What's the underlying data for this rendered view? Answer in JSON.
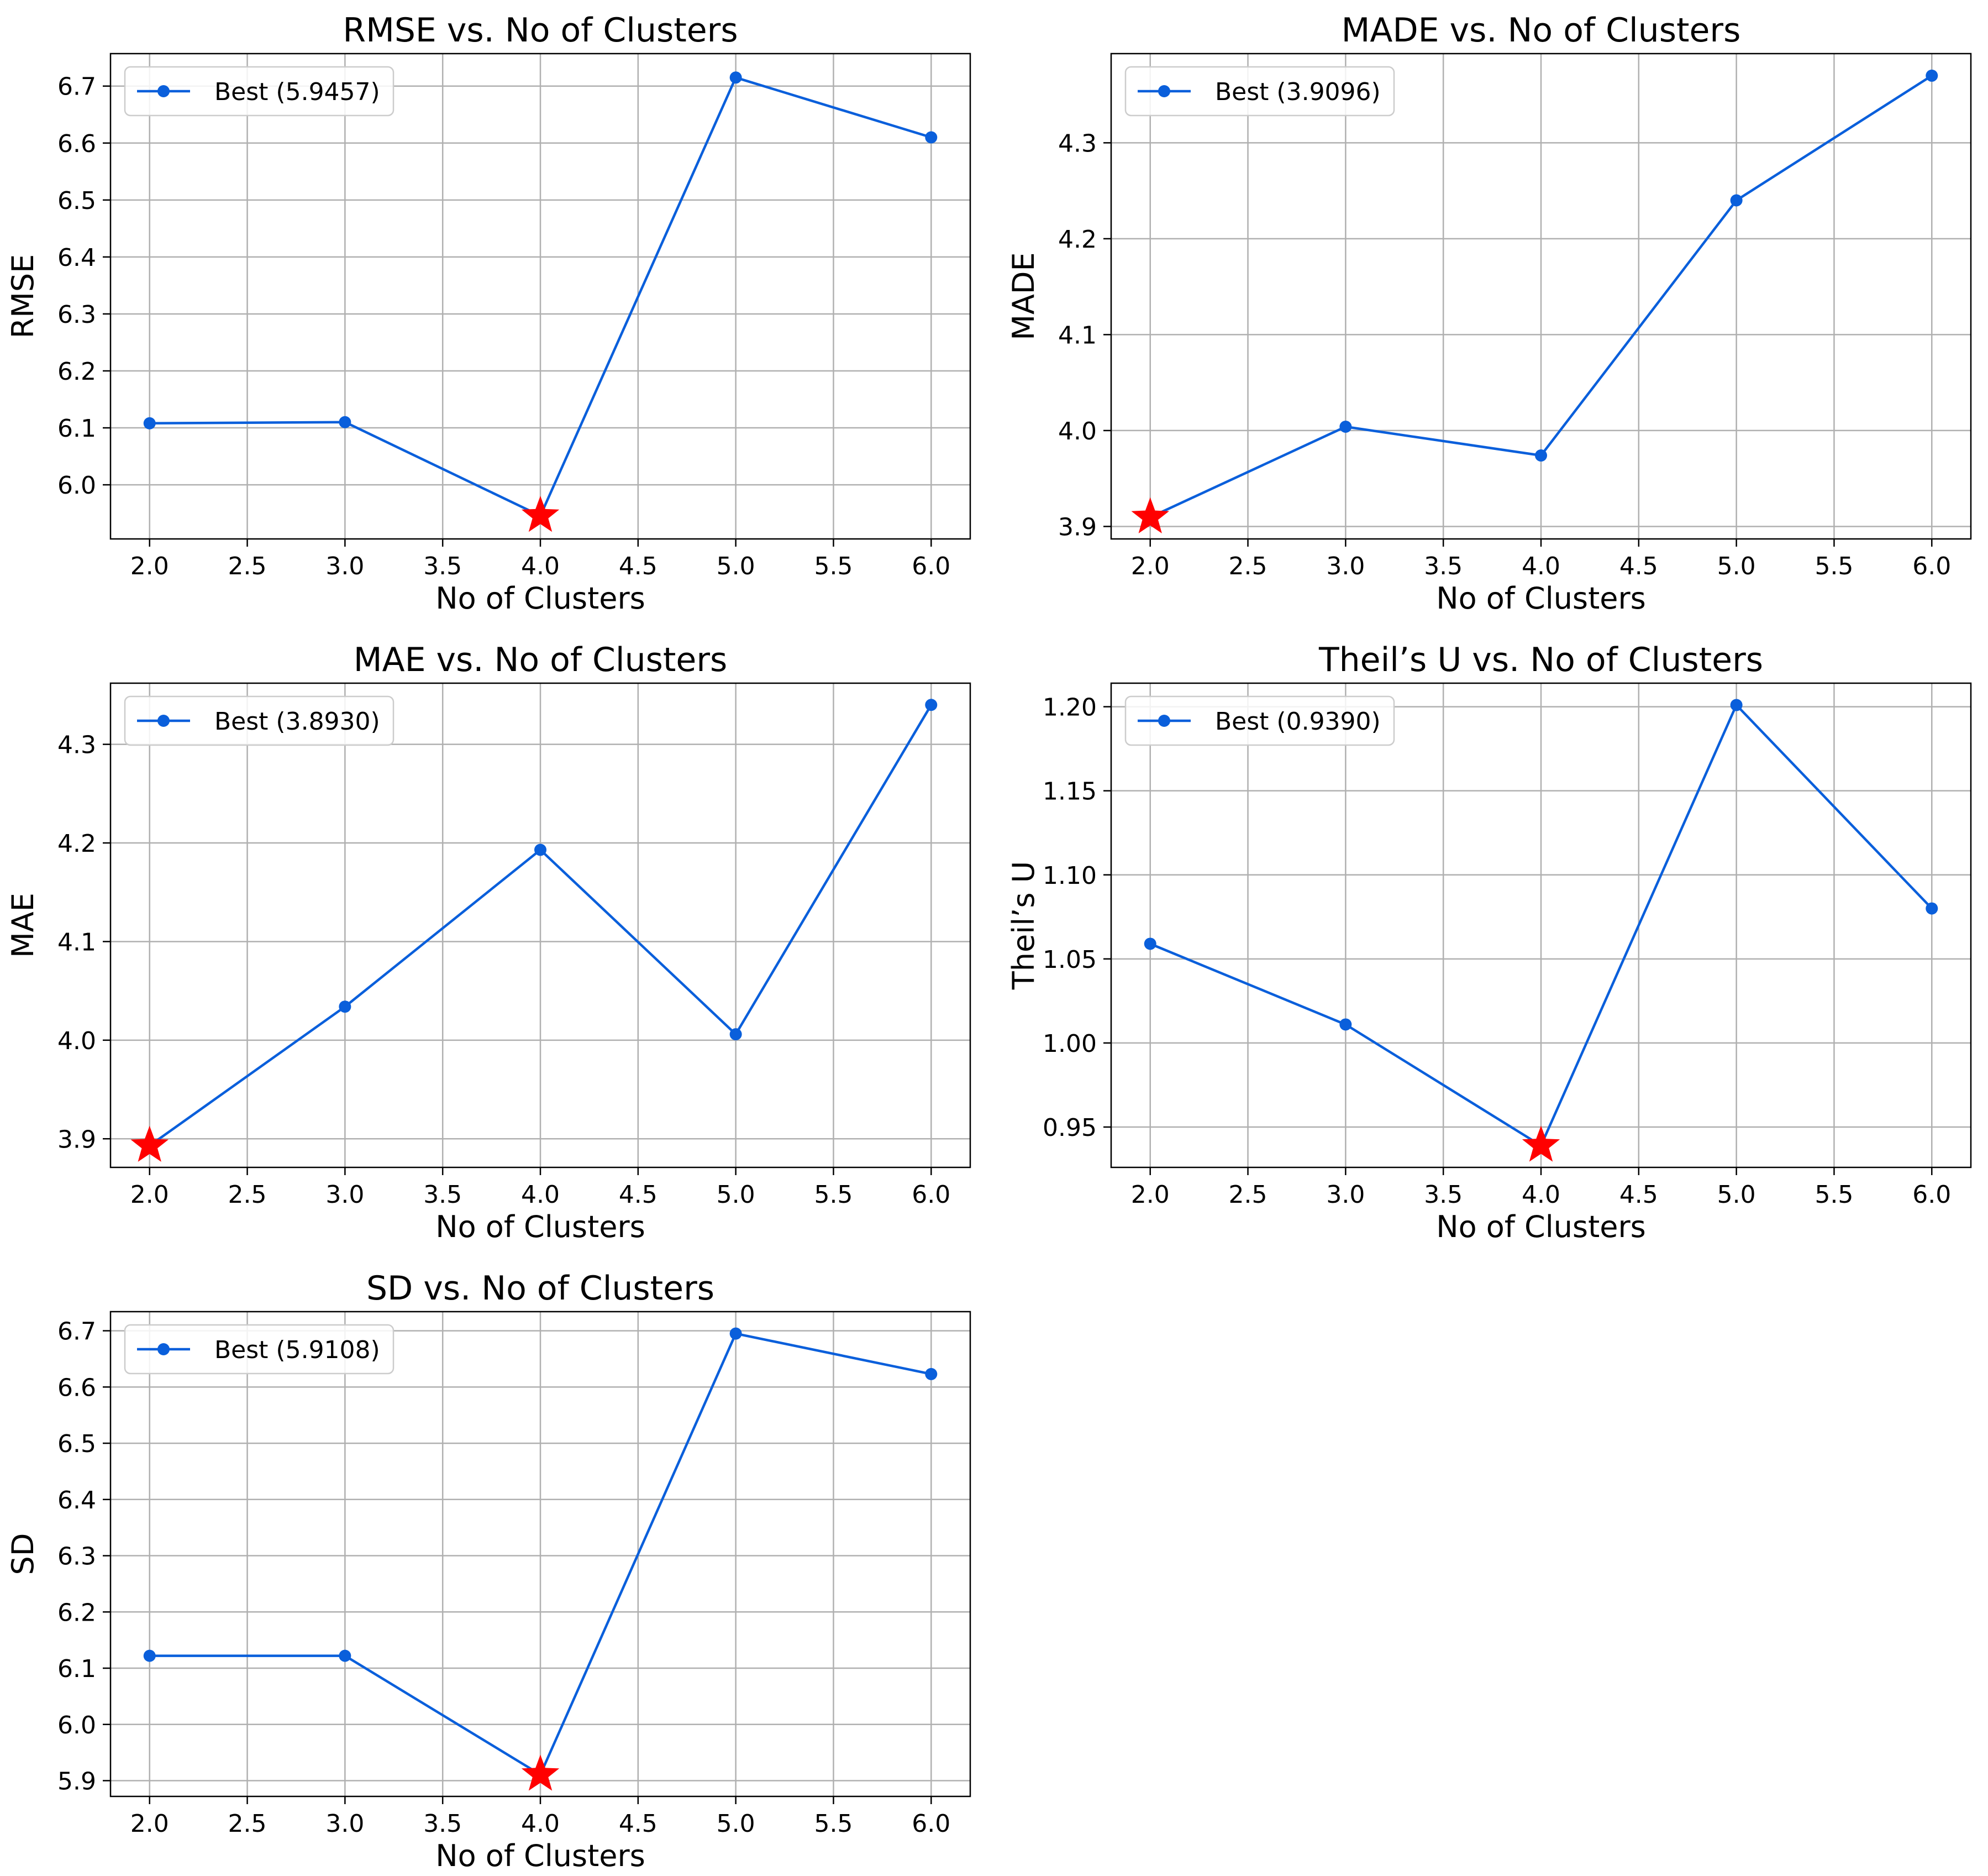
{
  "figure": {
    "background": "#ffffff",
    "line_color": "#0a5fdb",
    "best_marker_color": "#ff0000",
    "grid_color": "#b0b0b0"
  },
  "chart_data": [
    {
      "type": "line",
      "title": "RMSE vs. No of Clusters",
      "xlabel": "No of Clusters",
      "ylabel": "RMSE",
      "x": [
        2.0,
        3.0,
        4.0,
        5.0,
        6.0
      ],
      "values": [
        6.108,
        6.11,
        5.9457,
        6.715,
        6.61
      ],
      "xlim": [
        1.8,
        6.2
      ],
      "ylim": [
        5.905,
        6.757
      ],
      "xticks": [
        "2.0",
        "2.5",
        "3.0",
        "3.5",
        "4.0",
        "4.5",
        "5.0",
        "5.5",
        "6.0"
      ],
      "yticks": [
        "6.0",
        "6.1",
        "6.2",
        "6.3",
        "6.4",
        "6.5",
        "6.6",
        "6.7"
      ],
      "legend": "Best (5.9457)",
      "legend_position": "top-left",
      "best_x": 4.0,
      "best_y": 5.9457,
      "grid": true
    },
    {
      "type": "line",
      "title": "MADE vs. No of Clusters",
      "xlabel": "No of Clusters",
      "ylabel": "MADE",
      "x": [
        2.0,
        3.0,
        4.0,
        5.0,
        6.0
      ],
      "values": [
        3.9096,
        4.004,
        3.974,
        4.24,
        4.37
      ],
      "xlim": [
        1.8,
        6.2
      ],
      "ylim": [
        3.887,
        4.393
      ],
      "xticks": [
        "2.0",
        "2.5",
        "3.0",
        "3.5",
        "4.0",
        "4.5",
        "5.0",
        "5.5",
        "6.0"
      ],
      "yticks": [
        "3.9",
        "4.0",
        "4.1",
        "4.2",
        "4.3"
      ],
      "legend": "Best (3.9096)",
      "legend_position": "top-left",
      "best_x": 2.0,
      "best_y": 3.9096,
      "grid": true
    },
    {
      "type": "line",
      "title": "MAE vs. No of Clusters",
      "xlabel": "No of Clusters",
      "ylabel": "MAE",
      "x": [
        2.0,
        3.0,
        4.0,
        5.0,
        6.0
      ],
      "values": [
        3.893,
        4.034,
        4.193,
        4.006,
        4.34
      ],
      "xlim": [
        1.8,
        6.2
      ],
      "ylim": [
        3.871,
        4.362
      ],
      "xticks": [
        "2.0",
        "2.5",
        "3.0",
        "3.5",
        "4.0",
        "4.5",
        "5.0",
        "5.5",
        "6.0"
      ],
      "yticks": [
        "3.9",
        "4.0",
        "4.1",
        "4.2",
        "4.3"
      ],
      "legend": "Best (3.8930)",
      "legend_position": "top-left",
      "best_x": 2.0,
      "best_y": 3.893,
      "grid": true
    },
    {
      "type": "line",
      "title": "Theil’s U vs. No of Clusters",
      "xlabel": "No of Clusters",
      "ylabel": "Theil’s U",
      "x": [
        2.0,
        3.0,
        4.0,
        5.0,
        6.0
      ],
      "values": [
        1.059,
        1.011,
        0.939,
        1.201,
        1.08
      ],
      "xlim": [
        1.8,
        6.2
      ],
      "ylim": [
        0.926,
        1.214
      ],
      "xticks": [
        "2.0",
        "2.5",
        "3.0",
        "3.5",
        "4.0",
        "4.5",
        "5.0",
        "5.5",
        "6.0"
      ],
      "yticks": [
        "0.95",
        "1.00",
        "1.05",
        "1.10",
        "1.15",
        "1.20"
      ],
      "legend": "Best (0.9390)",
      "legend_position": "top-left",
      "best_x": 4.0,
      "best_y": 0.939,
      "grid": true
    },
    {
      "type": "line",
      "title": "SD vs. No of Clusters",
      "xlabel": "No of Clusters",
      "ylabel": "SD",
      "x": [
        2.0,
        3.0,
        4.0,
        5.0,
        6.0
      ],
      "values": [
        6.122,
        6.122,
        5.9108,
        6.695,
        6.623
      ],
      "xlim": [
        1.8,
        6.2
      ],
      "ylim": [
        5.872,
        6.734
      ],
      "xticks": [
        "2.0",
        "2.5",
        "3.0",
        "3.5",
        "4.0",
        "4.5",
        "5.0",
        "5.5",
        "6.0"
      ],
      "yticks": [
        "5.9",
        "6.0",
        "6.1",
        "6.2",
        "6.3",
        "6.4",
        "6.5",
        "6.6",
        "6.7"
      ],
      "legend": "Best (5.9108)",
      "legend_position": "top-left",
      "best_x": 4.0,
      "best_y": 5.9108,
      "grid": true
    }
  ]
}
